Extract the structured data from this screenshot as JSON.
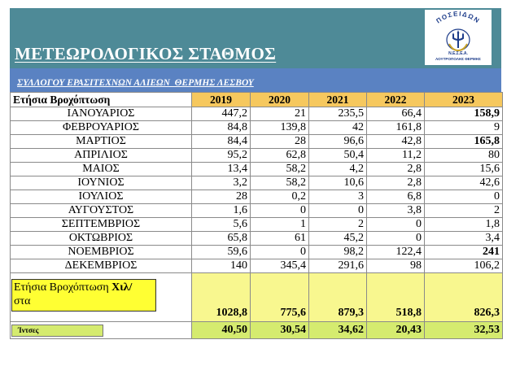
{
  "header": {
    "title": "ΜΕΤΕΩΡΟΛΟΓΙΚΟΣ ΣΤΑΘΜΟΣ",
    "bg_color": "#4e8a97"
  },
  "logo": {
    "arc_text": "ΠΟΣΕΙΔΩΝ",
    "line1": "Ν.Ε.Σ.Ε.Α.",
    "line2": "ΛΟΥΤΡΟΠΟΛΗΣ ΘΕΡΜΗΣ",
    "icon": "trident-laurel-emblem",
    "color": "#1d3c8a"
  },
  "subheader": {
    "text": "ΣΥΛΛΟΓΟΥ ΕΡΑΣΙΤΕΧΝΩΝ ΑΛΙΕΩΝ  ΘΕΡΜΗΣ ΛΕΣΒΟΥ",
    "bg_color": "#5a82c2"
  },
  "table": {
    "corner_label": "Ετήσια Βροχόπτωση",
    "years": [
      "2019",
      "2020",
      "2021",
      "2022",
      "2023"
    ],
    "year_header_color": "#f6c85e",
    "rows": [
      {
        "month": "ΙΑΝΟΥΑΡΙΟΣ",
        "values": [
          "447,2",
          "21",
          "235,5",
          "66,4",
          "158,9"
        ],
        "bold_last": true
      },
      {
        "month": "ΦΕΒΡΟΥΑΡΙΟΣ",
        "values": [
          "84,8",
          "139,8",
          "42",
          "161,8",
          "9"
        ],
        "bold_last": false
      },
      {
        "month": "ΜΑΡΤΙΟΣ",
        "values": [
          "84,4",
          "28",
          "96,6",
          "42,8",
          "165,8"
        ],
        "bold_last": true
      },
      {
        "month": "ΑΠΡΙΛΙΟΣ",
        "values": [
          "95,2",
          "62,8",
          "50,4",
          "11,2",
          "80"
        ],
        "bold_last": false
      },
      {
        "month": "ΜΑΙΟΣ",
        "values": [
          "13,4",
          "58,2",
          "4,2",
          "2,8",
          "15,6"
        ],
        "bold_last": false
      },
      {
        "month": "ΙΟΥΝΙΟΣ",
        "values": [
          "3,2",
          "58,2",
          "10,6",
          "2,8",
          "42,6"
        ],
        "bold_last": false
      },
      {
        "month": "ΙΟΥΛΙΟΣ",
        "values": [
          "28",
          "0,2",
          "3",
          "6,8",
          "0"
        ],
        "bold_last": false
      },
      {
        "month": "ΑΥΓΟΥΣΤΟΣ",
        "values": [
          "1,6",
          "0",
          "0",
          "3,8",
          "2"
        ],
        "bold_last": false
      },
      {
        "month": "ΣΕΠΤΕΜΒΡΙΟΣ",
        "values": [
          "5,6",
          "1",
          "2",
          "0",
          "1,8"
        ],
        "bold_last": false
      },
      {
        "month": "ΟΚΤΩΒΡΙΟΣ",
        "values": [
          "65,8",
          "61",
          "45,2",
          "0",
          "3,4"
        ],
        "bold_last": false
      },
      {
        "month": "ΝΟΕΜΒΡΙΟΣ",
        "values": [
          "59,6",
          "0",
          "98,2",
          "122,4",
          "241"
        ],
        "bold_last": true
      },
      {
        "month": "ΔΕΚΕΜΒΡΙΟΣ",
        "values": [
          "140",
          "345,4",
          "291,6",
          "98",
          "106,2"
        ],
        "bold_last": false
      }
    ],
    "total": {
      "label_plain": "Ετήσια Βροχόπτωση ",
      "label_bold": "Χιλ/",
      "label_rest": "στα",
      "values": [
        "1028,8",
        "775,6",
        "879,3",
        "518,8",
        "826,3"
      ],
      "color": "#f8f78f"
    },
    "inches": {
      "label": "Ίντσες",
      "values": [
        "40,50",
        "30,54",
        "34,62",
        "20,43",
        "32,53"
      ],
      "color": "#d5eb6f"
    }
  }
}
